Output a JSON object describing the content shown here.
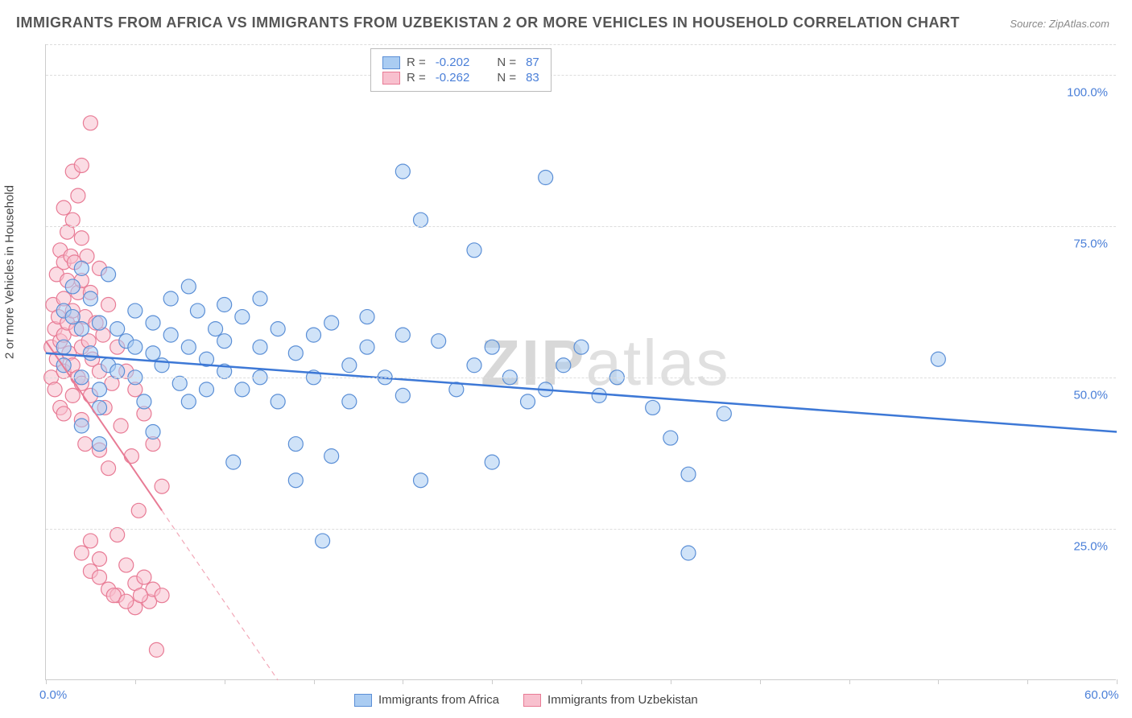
{
  "title": "IMMIGRANTS FROM AFRICA VS IMMIGRANTS FROM UZBEKISTAN 2 OR MORE VEHICLES IN HOUSEHOLD CORRELATION CHART",
  "source": "Source:",
  "source_name": "ZipAtlas.com",
  "ylabel": "2 or more Vehicles in Household",
  "watermark_a": "ZIP",
  "watermark_b": "atlas",
  "chart": {
    "type": "scatter",
    "background_color": "#ffffff",
    "grid_color": "#dddddd",
    "axis_color": "#cccccc",
    "tick_label_color": "#4a7fd8",
    "label_fontsize": 15,
    "title_fontsize": 18,
    "xlim": [
      0,
      60
    ],
    "ylim": [
      0,
      105
    ],
    "yticks": [
      25,
      50,
      75,
      100
    ],
    "ytick_labels": [
      "25.0%",
      "50.0%",
      "75.0%",
      "100.0%"
    ],
    "xtick_positions": [
      0,
      5,
      10,
      15,
      20,
      25,
      30,
      35,
      40,
      45,
      50,
      55,
      60
    ],
    "xtick_labels": {
      "0": "0.0%",
      "60": "60.0%"
    },
    "marker_radius": 9,
    "marker_stroke_width": 1.2,
    "series": [
      {
        "name": "Immigrants from Africa",
        "fill": "#aaccf2",
        "stroke": "#5b8fd6",
        "fill_opacity": 0.55,
        "R": "-0.202",
        "N": "87",
        "trend": {
          "x1": 0,
          "y1": 54,
          "x2": 60,
          "y2": 41,
          "color": "#3d78d6",
          "width": 2.5,
          "dash": "none"
        },
        "points": [
          [
            1,
            55
          ],
          [
            1,
            61
          ],
          [
            1,
            52
          ],
          [
            1.5,
            65
          ],
          [
            2,
            58
          ],
          [
            2,
            50
          ],
          [
            2,
            68
          ],
          [
            2.5,
            54
          ],
          [
            3,
            48
          ],
          [
            3,
            59
          ],
          [
            3,
            45
          ],
          [
            3,
            39
          ],
          [
            1.5,
            60
          ],
          [
            2.5,
            63
          ],
          [
            3.5,
            52
          ],
          [
            4,
            58
          ],
          [
            4,
            51
          ],
          [
            4.5,
            56
          ],
          [
            5,
            61
          ],
          [
            5,
            55
          ],
          [
            5,
            50
          ],
          [
            5.5,
            46
          ],
          [
            6,
            54
          ],
          [
            6,
            59
          ],
          [
            6,
            41
          ],
          [
            6.5,
            52
          ],
          [
            7,
            63
          ],
          [
            7,
            57
          ],
          [
            7.5,
            49
          ],
          [
            8,
            65
          ],
          [
            8,
            55
          ],
          [
            8,
            46
          ],
          [
            8.5,
            61
          ],
          [
            9,
            53
          ],
          [
            9,
            48
          ],
          [
            9.5,
            58
          ],
          [
            10,
            62
          ],
          [
            10,
            56
          ],
          [
            10,
            51
          ],
          [
            10.5,
            36
          ],
          [
            11,
            60
          ],
          [
            11,
            48
          ],
          [
            12,
            63
          ],
          [
            12,
            55
          ],
          [
            12,
            50
          ],
          [
            13,
            58
          ],
          [
            13,
            46
          ],
          [
            14,
            54
          ],
          [
            14,
            39
          ],
          [
            14,
            33
          ],
          [
            15,
            57
          ],
          [
            15,
            50
          ],
          [
            15.5,
            23
          ],
          [
            16,
            59
          ],
          [
            16,
            37
          ],
          [
            17,
            52
          ],
          [
            17,
            46
          ],
          [
            18,
            60
          ],
          [
            18,
            55
          ],
          [
            19,
            50
          ],
          [
            20,
            84
          ],
          [
            20,
            57
          ],
          [
            20,
            47
          ],
          [
            21,
            76
          ],
          [
            21,
            33
          ],
          [
            22,
            56
          ],
          [
            23,
            48
          ],
          [
            24,
            71
          ],
          [
            24,
            52
          ],
          [
            25,
            55
          ],
          [
            25,
            36
          ],
          [
            26,
            50
          ],
          [
            27,
            46
          ],
          [
            28,
            83
          ],
          [
            28,
            48
          ],
          [
            29,
            52
          ],
          [
            30,
            55
          ],
          [
            31,
            47
          ],
          [
            32,
            50
          ],
          [
            34,
            45
          ],
          [
            35,
            40
          ],
          [
            36,
            34
          ],
          [
            36,
            21
          ],
          [
            38,
            44
          ],
          [
            50,
            53
          ],
          [
            2,
            42
          ],
          [
            3.5,
            67
          ]
        ]
      },
      {
        "name": "Immigrants from Uzbekistan",
        "fill": "#f8c0ce",
        "stroke": "#e87b95",
        "fill_opacity": 0.55,
        "R": "-0.262",
        "N": "83",
        "trend": {
          "x1": 0,
          "y1": 56,
          "x2": 13,
          "y2": 0,
          "color": "#e87b95",
          "width": 2,
          "dash": "none"
        },
        "trend_ext": {
          "x1": 6.5,
          "y1": 28,
          "x2": 13,
          "y2": 0,
          "color": "#f2a8b8",
          "width": 1.2,
          "dash": "6,5"
        },
        "points": [
          [
            0.3,
            55
          ],
          [
            0.3,
            50
          ],
          [
            0.4,
            62
          ],
          [
            0.5,
            58
          ],
          [
            0.5,
            48
          ],
          [
            0.6,
            67
          ],
          [
            0.6,
            53
          ],
          [
            0.7,
            60
          ],
          [
            0.8,
            71
          ],
          [
            0.8,
            56
          ],
          [
            0.8,
            45
          ],
          [
            1,
            78
          ],
          [
            1,
            69
          ],
          [
            1,
            63
          ],
          [
            1,
            57
          ],
          [
            1,
            51
          ],
          [
            1,
            44
          ],
          [
            1.2,
            74
          ],
          [
            1.2,
            66
          ],
          [
            1.2,
            59
          ],
          [
            1.3,
            54
          ],
          [
            1.4,
            70
          ],
          [
            1.5,
            84
          ],
          [
            1.5,
            76
          ],
          [
            1.5,
            61
          ],
          [
            1.5,
            52
          ],
          [
            1.5,
            47
          ],
          [
            1.6,
            69
          ],
          [
            1.7,
            58
          ],
          [
            1.8,
            80
          ],
          [
            1.8,
            64
          ],
          [
            1.8,
            50
          ],
          [
            2,
            85
          ],
          [
            2,
            73
          ],
          [
            2,
            66
          ],
          [
            2,
            55
          ],
          [
            2,
            49
          ],
          [
            2,
            43
          ],
          [
            2,
            21
          ],
          [
            2.2,
            60
          ],
          [
            2.2,
            39
          ],
          [
            2.3,
            70
          ],
          [
            2.4,
            56
          ],
          [
            2.5,
            92
          ],
          [
            2.5,
            64
          ],
          [
            2.5,
            47
          ],
          [
            2.5,
            23
          ],
          [
            2.6,
            53
          ],
          [
            2.8,
            59
          ],
          [
            3,
            68
          ],
          [
            3,
            51
          ],
          [
            3,
            38
          ],
          [
            3,
            20
          ],
          [
            3.2,
            57
          ],
          [
            3.3,
            45
          ],
          [
            3.5,
            62
          ],
          [
            3.5,
            35
          ],
          [
            3.5,
            15
          ],
          [
            3.7,
            49
          ],
          [
            4,
            55
          ],
          [
            4,
            24
          ],
          [
            4,
            14
          ],
          [
            4.2,
            42
          ],
          [
            4.5,
            51
          ],
          [
            4.5,
            19
          ],
          [
            4.8,
            37
          ],
          [
            5,
            48
          ],
          [
            5,
            16
          ],
          [
            5,
            12
          ],
          [
            5.2,
            28
          ],
          [
            5.5,
            44
          ],
          [
            5.5,
            17
          ],
          [
            5.8,
            13
          ],
          [
            6,
            39
          ],
          [
            6,
            15
          ],
          [
            6.2,
            5
          ],
          [
            6.5,
            32
          ],
          [
            6.5,
            14
          ],
          [
            2.5,
            18
          ],
          [
            3,
            17
          ],
          [
            3.8,
            14
          ],
          [
            4.5,
            13
          ],
          [
            5.3,
            14
          ]
        ]
      }
    ]
  },
  "legend_top": {
    "r_label": "R =",
    "n_label": "N ="
  },
  "legend_bottom": [
    "Immigrants from Africa",
    "Immigrants from Uzbekistan"
  ]
}
